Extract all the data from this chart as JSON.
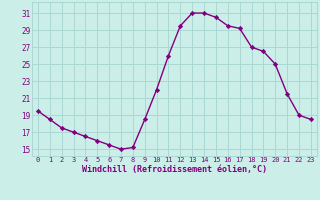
{
  "x": [
    0,
    1,
    2,
    3,
    4,
    5,
    6,
    7,
    8,
    9,
    10,
    11,
    12,
    13,
    14,
    15,
    16,
    17,
    18,
    19,
    20,
    21,
    22,
    23
  ],
  "y": [
    19.5,
    18.5,
    17.5,
    17.0,
    16.5,
    16.0,
    15.5,
    15.0,
    15.2,
    18.5,
    22.0,
    26.0,
    29.5,
    31.0,
    31.0,
    30.5,
    29.5,
    29.2,
    27.0,
    26.5,
    25.0,
    21.5,
    19.0,
    18.5
  ],
  "line_color": "#800080",
  "marker": "D",
  "marker_size": 2.2,
  "line_width": 1.0,
  "bg_color": "#cceee8",
  "grid_color": "#aad8d2",
  "xlabel": "Windchill (Refroidissement éolien,°C)",
  "xlabel_color": "#800080",
  "ylabel_ticks": [
    15,
    17,
    19,
    21,
    23,
    25,
    27,
    29,
    31
  ],
  "xlim": [
    -0.5,
    23.5
  ],
  "ylim": [
    14.2,
    32.3
  ],
  "tick_label_color": "#800080",
  "tick_fontsize": 5.0,
  "xlabel_fontsize": 6.0
}
